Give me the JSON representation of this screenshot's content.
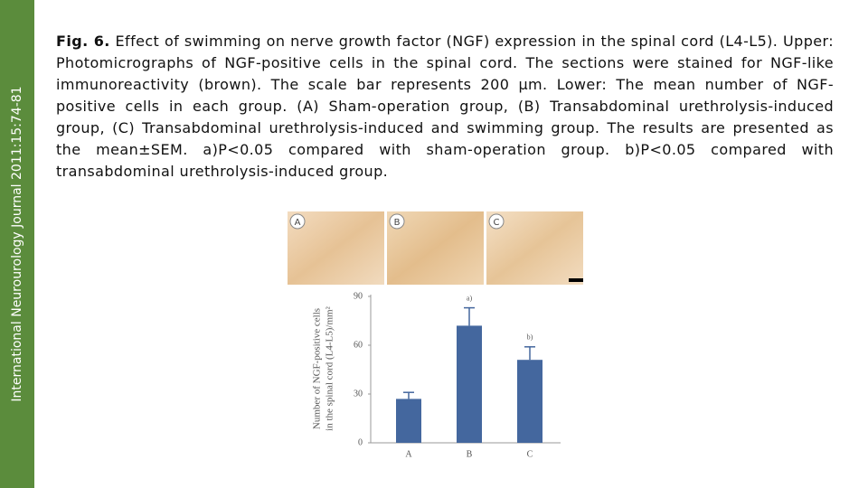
{
  "sidebar": "International Neurourology Journal 2011:15:74-81",
  "caption": {
    "label": "Fig. 6.",
    "text": "Effect of swimming on nerve growth factor (NGF) expression in the spinal cord (L4-L5). Upper: Photomicrographs of NGF-positive cells in the spinal cord. The sections were stained for NGF-like immunoreactivity (brown). The scale bar represents 200 μm. Lower: The mean number of NGF-positive cells in each group. (A) Sham-operation group, (B) Transabdominal urethrolysis-induced group, (C) Transabdominal urethrolysis-induced and swimming group. The results are presented as the mean±SEM. a)P<0.05 compared with sham-operation group. b)P<0.05 compared with transabdominal urethrolysis-induced group."
  },
  "photos": [
    "A",
    "B",
    "C"
  ],
  "chart_data": {
    "type": "bar",
    "ylabel": [
      "Number of NGF-positive cells",
      "in the spinal cord (L4-L5)/mm²"
    ],
    "categories": [
      "A",
      "B",
      "C"
    ],
    "values": [
      27,
      72,
      51
    ],
    "errors": [
      4,
      11,
      8
    ],
    "annotations": [
      null,
      "a)",
      "b)"
    ],
    "color": "#44679e",
    "ylim": [
      0,
      90
    ],
    "yticks": [
      0,
      30,
      60,
      90
    ]
  }
}
